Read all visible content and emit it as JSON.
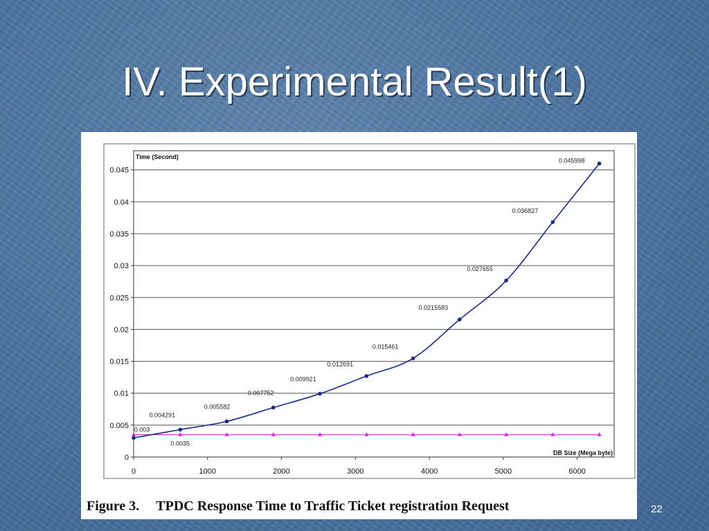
{
  "slide": {
    "title": "IV. Experimental Result(1)",
    "page_number": "22"
  },
  "figure": {
    "number": "Figure 3.",
    "caption": "TPDC Response Time to Traffic Ticket registration Request"
  },
  "chart_data": {
    "type": "line",
    "ylabel": "Time (Second)",
    "xlabel": "DB Size (Mega byte)",
    "xlim": [
      0,
      6500
    ],
    "ylim": [
      0,
      0.048
    ],
    "x_ticks": [
      "0",
      "1000",
      "2000",
      "3000",
      "4000",
      "5000",
      "6000"
    ],
    "y_ticks": [
      "0",
      "0.005",
      "0.01",
      "0.015",
      "0.02",
      "0.025",
      "0.03",
      "0.035",
      "0.04",
      "0.045"
    ],
    "grid": "horizontal",
    "series": [
      {
        "color": "#1a2a8a",
        "marker": "circle",
        "x": [
          0,
          630,
          1260,
          1890,
          2520,
          3150,
          3780,
          4410,
          5040,
          5670,
          6300
        ],
        "y": [
          0.003,
          0.004291,
          0.005582,
          0.007752,
          0.009921,
          0.012691,
          0.015461,
          0.0215583,
          0.027655,
          0.036827,
          0.045998
        ],
        "labels": [
          "0.003",
          "0.004291",
          "0.005582",
          "0.007752",
          "0.009921",
          "0.012691",
          "0.015461",
          "0.0215583",
          "0.027655",
          "0.036827",
          "0.045998"
        ]
      },
      {
        "color": "#e020e0",
        "marker": "triangle",
        "x": [
          0,
          630,
          1260,
          1890,
          2520,
          3150,
          3780,
          4410,
          5040,
          5670,
          6300
        ],
        "y": [
          0.0035,
          0.0035,
          0.0035,
          0.0035,
          0.0035,
          0.0035,
          0.0035,
          0.0035,
          0.0035,
          0.0035,
          0.0035
        ],
        "labels": [
          "0.0035"
        ]
      }
    ]
  }
}
